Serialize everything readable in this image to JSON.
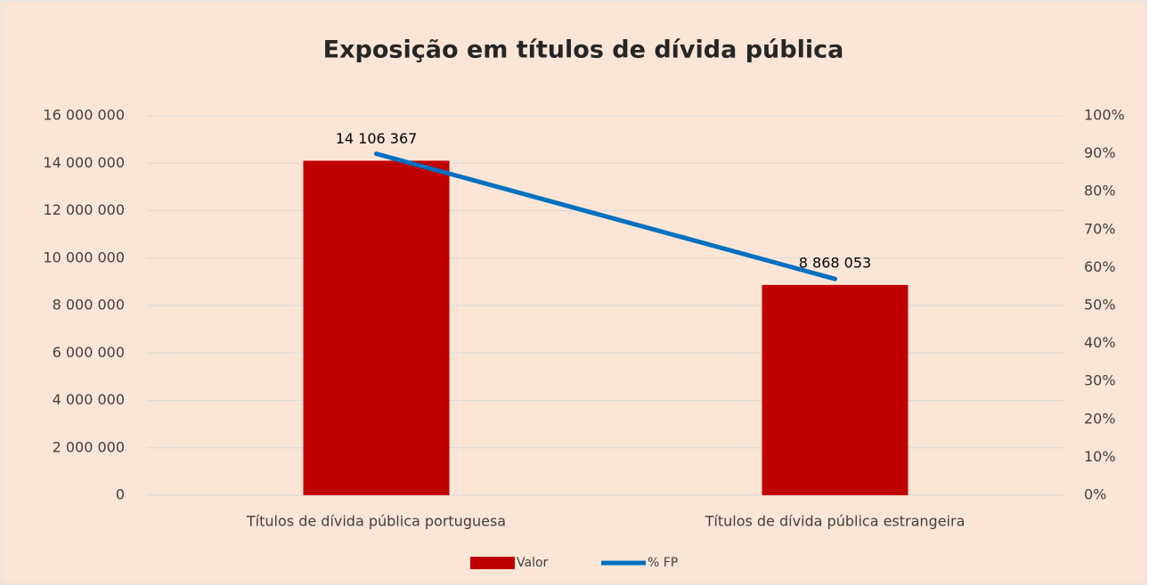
{
  "chart_data": {
    "type": "combo",
    "title": "Exposição em títulos de dívida pública",
    "categories": [
      "Títulos de dívida pública portuguesa",
      "Títulos de dívida pública estrangeira"
    ],
    "series": [
      {
        "name": "Valor",
        "type": "bar",
        "color": "#c00000",
        "values": [
          14106367,
          8868053
        ],
        "value_labels": [
          "14 106 367",
          "8 868 053"
        ]
      },
      {
        "name": "% FP",
        "type": "line",
        "axis": "y2",
        "color": "#0070c0",
        "values": [
          90,
          57
        ]
      }
    ],
    "ylim": [
      0,
      16000000
    ],
    "yticks": [
      0,
      {
        "value": 2000000,
        "label": "2 000 000"
      },
      {
        "value": 4000000,
        "label": "4 000 000"
      },
      {
        "value": 6000000,
        "label": "6 000 000"
      },
      {
        "value": 8000000,
        "label": "8 000 000"
      },
      {
        "value": 10000000,
        "label": "10 000 000"
      },
      {
        "value": 12000000,
        "label": "12 000 000"
      },
      {
        "value": 14000000,
        "label": "14 000 000"
      },
      {
        "value": 16000000,
        "label": "16 000 000"
      }
    ],
    "y2lim": [
      0,
      100
    ],
    "y2ticks": [
      {
        "value": 0,
        "label": "0%"
      },
      {
        "value": 10,
        "label": "10%"
      },
      {
        "value": 20,
        "label": "20%"
      },
      {
        "value": 30,
        "label": "30%"
      },
      {
        "value": 40,
        "label": "40%"
      },
      {
        "value": 50,
        "label": "50%"
      },
      {
        "value": 60,
        "label": "60%"
      },
      {
        "value": 70,
        "label": "70%"
      },
      {
        "value": 80,
        "label": "80%"
      },
      {
        "value": 90,
        "label": "90%"
      },
      {
        "value": 100,
        "label": "100%"
      }
    ],
    "grid": true,
    "legend": "bottom"
  }
}
